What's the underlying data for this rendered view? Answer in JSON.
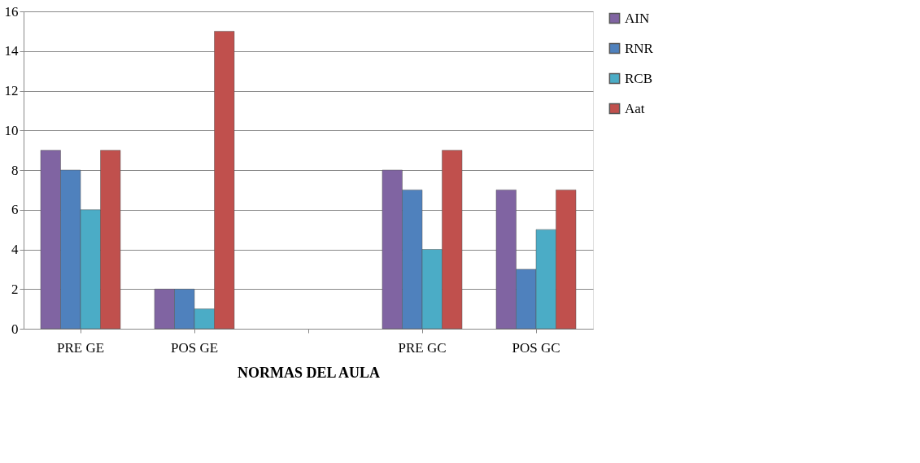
{
  "chart_data": {
    "type": "bar",
    "xlabel": "NORMAS DEL AULA",
    "categories": [
      "PRE GE",
      "POS GE",
      null,
      "PRE GC",
      "POS GC"
    ],
    "series": [
      {
        "name": "AIN",
        "color": "#8064a2",
        "values": [
          9,
          2,
          null,
          8,
          7
        ]
      },
      {
        "name": "RNR",
        "color": "#4f81bd",
        "values": [
          8,
          2,
          null,
          7,
          3
        ]
      },
      {
        "name": "RCB",
        "color": "#4bacc6",
        "values": [
          6,
          1,
          null,
          4,
          5
        ]
      },
      {
        "name": "Aat",
        "color": "#c0504d",
        "values": [
          9,
          15,
          null,
          9,
          7
        ]
      }
    ],
    "ylim": [
      0,
      16
    ],
    "yticks": [
      0,
      2,
      4,
      6,
      8,
      10,
      12,
      14,
      16
    ],
    "grid": "y",
    "legend": "right"
  }
}
